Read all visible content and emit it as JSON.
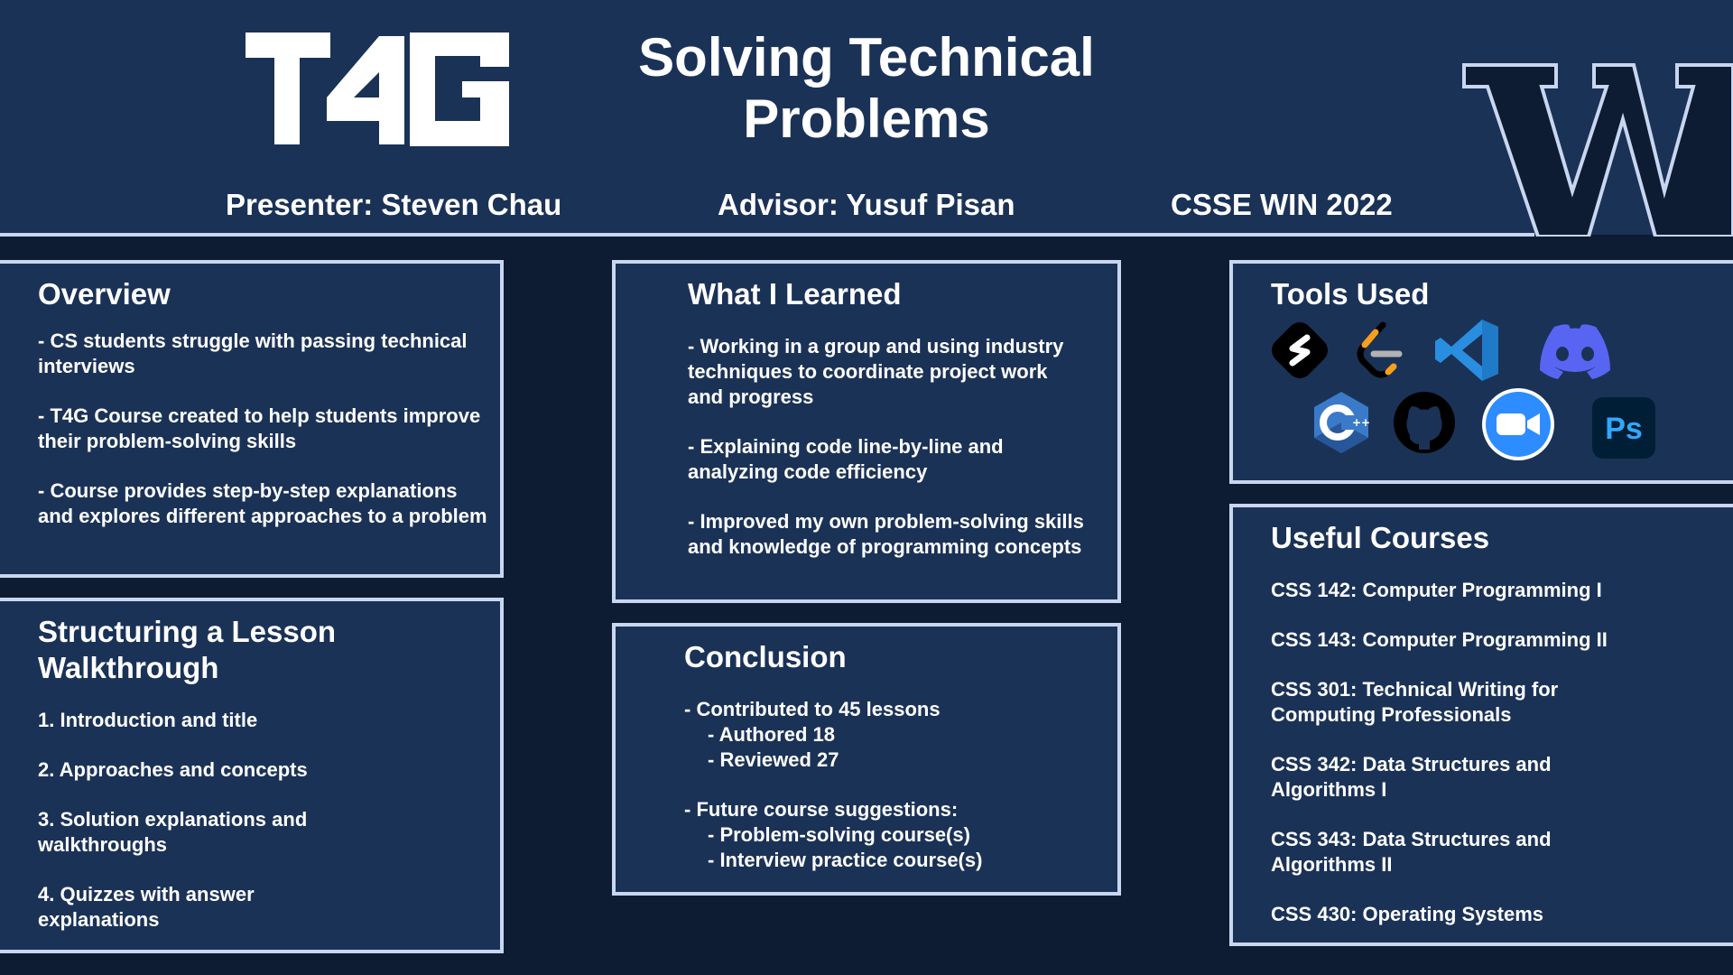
{
  "header": {
    "logo_text": "T4G",
    "title_line1": "Solving Technical",
    "title_line2": "Problems",
    "presenter": "Presenter: Steven Chau",
    "advisor": "Advisor: Yusuf Pisan",
    "term": "CSSE WIN 2022",
    "university_logo": "W"
  },
  "overview": {
    "title": "Overview",
    "items": [
      "- CS students struggle with passing technical interviews",
      "- T4G Course created to help students improve their problem-solving skills",
      "- Course provides step-by-step explanations and explores different approaches to a problem"
    ]
  },
  "structuring": {
    "title_line1": "Structuring a Lesson",
    "title_line2": "Walkthrough",
    "items": [
      "1. Introduction and title",
      "2. Approaches and concepts",
      "3. Solution explanations and walkthroughs",
      "4. Quizzes with answer explanations"
    ]
  },
  "learned": {
    "title": "What I Learned",
    "items": [
      "- Working in a group and using industry techniques to coordinate project work and progress",
      "- Explaining code line-by-line and analyzing code efficiency",
      "- Improved my own problem-solving skills and knowledge of programming concepts"
    ]
  },
  "conclusion": {
    "title": "Conclusion",
    "contributed": "- Contributed to 45 lessons",
    "authored": "- Authored 18",
    "reviewed": "- Reviewed 27",
    "future": "- Future course suggestions:",
    "future_items": [
      "- Problem-solving course(s)",
      "- Interview practice course(s)"
    ]
  },
  "tools": {
    "title": "Tools Used",
    "icons": [
      "codesignal-icon",
      "leetcode-icon",
      "vscode-icon",
      "discord-icon",
      "cpp-icon",
      "github-icon",
      "zoom-icon",
      "photoshop-icon"
    ],
    "photoshop_label": "Ps",
    "colors": {
      "leetcode": "#f89f1b",
      "vscode": "#2a8ee0",
      "discord": "#5865f2",
      "cpp": "#3b7ac9",
      "zoom": "#2d8cff",
      "photoshop_bg": "#001e36",
      "photoshop_fg": "#31a8ff"
    }
  },
  "courses": {
    "title": "Useful Courses",
    "items": [
      "CSS 142: Computer Programming I",
      "CSS 143: Computer Programming II",
      "CSS 301: Technical Writing for Computing Professionals",
      "CSS 342: Data Structures and Algorithms I",
      "CSS 343: Data Structures and Algorithms II",
      "CSS 430: Operating Systems"
    ]
  }
}
